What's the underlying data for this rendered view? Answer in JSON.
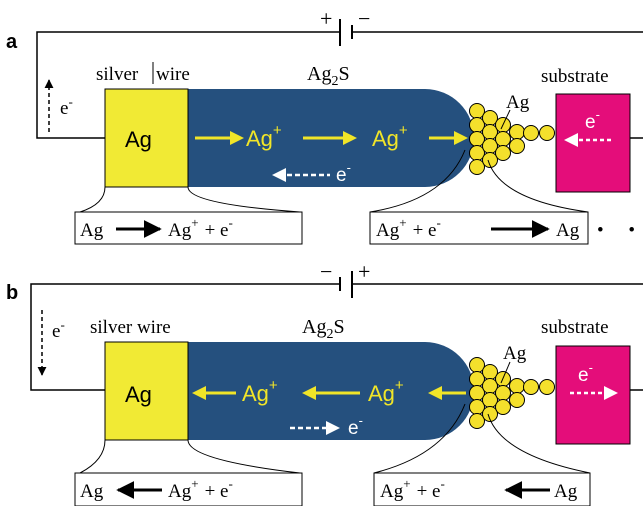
{
  "colors": {
    "electrolyte": "#25507e",
    "silver": "#f1ea34",
    "substrate": "#e40d7a",
    "atom": "#f4e02c",
    "ion_text": "#f1e528",
    "wire": "#000000"
  },
  "panel_a": {
    "label": "a",
    "battery_plus": "+",
    "battery_minus": "−",
    "electrolyte": {
      "text": "Ag",
      "sub": "2",
      "tail": "S"
    },
    "silver_wire_label_left": "silver",
    "silver_wire_label_right": "wire",
    "substrate_label": "substrate",
    "electron_left": {
      "text": "e",
      "sup": "-"
    },
    "silver_block": "Ag",
    "ion1": {
      "text": "Ag",
      "sup": "+"
    },
    "ion2": {
      "text": "Ag",
      "sup": "+"
    },
    "electron_mid": {
      "text": "e",
      "sup": "-"
    },
    "atom_label": "Ag",
    "electron_substrate": {
      "text": "e",
      "sup": "-"
    },
    "equation_left": {
      "reactant": "Ag",
      "product": "Ag",
      "product_sup": "+",
      "plus": "+ e",
      "e_sup": "-"
    },
    "equation_right": {
      "reactant": "Ag",
      "reactant_sup": "+",
      "plus": "+ e",
      "e_sup": "-",
      "product": "Ag",
      "trail": "• •"
    }
  },
  "panel_b": {
    "label": "b",
    "battery_minus": "−",
    "battery_plus": "+",
    "electrolyte": {
      "text": "Ag",
      "sub": "2",
      "tail": "S"
    },
    "silver_wire_label": "silver wire",
    "substrate_label": "substrate",
    "electron_left": {
      "text": "e",
      "sup": "-"
    },
    "silver_block": "Ag",
    "ion1": {
      "text": "Ag",
      "sup": "+"
    },
    "ion2": {
      "text": "Ag",
      "sup": "+"
    },
    "electron_mid": {
      "text": "e",
      "sup": "-"
    },
    "atom_label": "Ag",
    "electron_substrate": {
      "text": "e",
      "sup": "-"
    },
    "equation_left": {
      "product": "Ag",
      "reactant": "Ag",
      "reactant_sup": "+",
      "plus": "+ e",
      "e_sup": "-"
    },
    "equation_right": {
      "reactant": "Ag",
      "reactant_sup": "+",
      "plus": "+ e",
      "e_sup": "-",
      "product": "Ag"
    }
  }
}
